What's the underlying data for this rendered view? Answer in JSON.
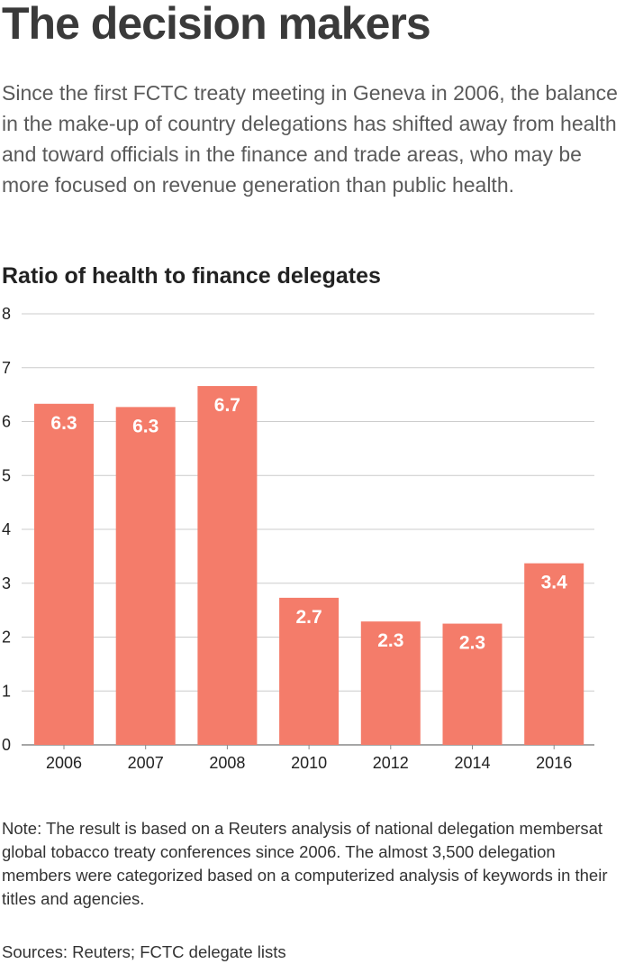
{
  "headline": "The decision makers",
  "dek": "Since the first FCTC treaty meeting in Geneva in 2006, the balance in the make-up of country delegations has shifted away from health and toward officials in the finance and trade areas, who may be more focused on revenue generation than public health.",
  "note": "Note: The result is based on a Reuters analysis of national delegation membersat global tobacco treaty conferences since 2006. The almost 3,500 delegation members were categorized based on a computerized analysis of keywords in their titles and agencies.",
  "source": "Sources: Reuters; FCTC delegate lists",
  "colors": {
    "bar": "#f47c6a",
    "grid": "#cccccc",
    "axis": "#888888"
  },
  "chart_data": {
    "type": "bar",
    "title": "Ratio of health to finance delegates",
    "xlabel": "",
    "ylabel": "",
    "categories": [
      "2006",
      "2007",
      "2008",
      "2010",
      "2012",
      "2014",
      "2016"
    ],
    "values": [
      6.33,
      6.27,
      6.66,
      2.73,
      2.29,
      2.25,
      3.37
    ],
    "value_labels": [
      "6.3",
      "6.3",
      "6.7",
      "2.7",
      "2.3",
      "2.3",
      "3.4"
    ],
    "yticks": [
      "0",
      "1",
      "2",
      "3",
      "4",
      "5",
      "6",
      "7",
      "8"
    ],
    "ylim": [
      0,
      8
    ],
    "grid": true,
    "legend": "none"
  }
}
